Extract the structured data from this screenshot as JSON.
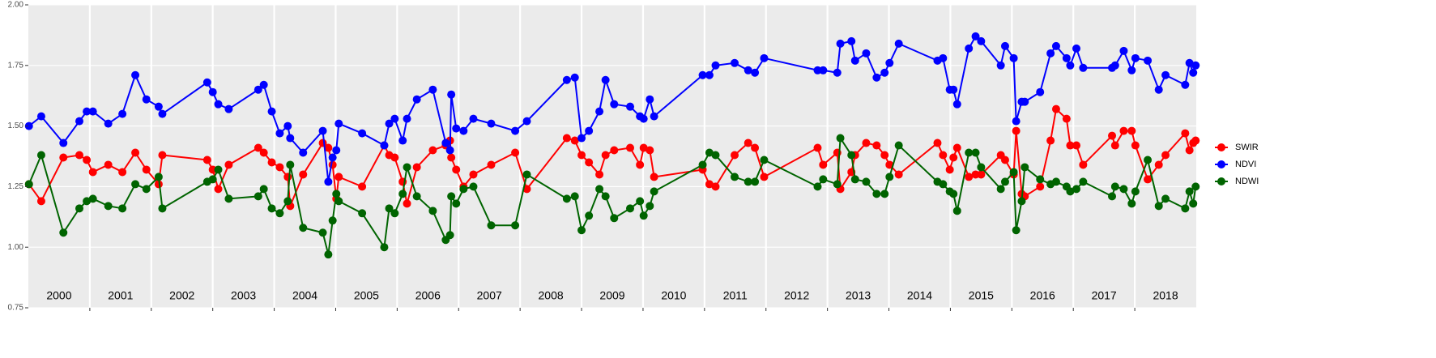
{
  "chart_data": {
    "type": "line",
    "x": [
      2000.01,
      2000.21,
      2000.57,
      2000.83,
      2000.95,
      2001.05,
      2001.3,
      2001.53,
      2001.74,
      2001.92,
      2002.12,
      2002.18,
      2002.91,
      2003.0,
      2003.09,
      2003.26,
      2003.74,
      2003.83,
      2003.96,
      2004.09,
      2004.22,
      2004.26,
      2004.47,
      2004.79,
      2004.88,
      2004.95,
      2005.01,
      2005.05,
      2005.43,
      2005.79,
      2005.87,
      2005.96,
      2006.09,
      2006.16,
      2006.32,
      2006.58,
      2006.79,
      2006.86,
      2006.88,
      2006.96,
      2007.08,
      2007.24,
      2007.53,
      2007.92,
      2008.11,
      2008.76,
      2008.89,
      2009.0,
      2009.12,
      2009.29,
      2009.39,
      2009.53,
      2009.79,
      2009.95,
      2010.01,
      2010.11,
      2010.18,
      2010.97,
      2011.08,
      2011.18,
      2011.49,
      2011.71,
      2011.82,
      2011.97,
      2012.84,
      2012.93,
      2013.16,
      2013.21,
      2013.39,
      2013.45,
      2013.63,
      2013.8,
      2013.93,
      2014.01,
      2014.16,
      2014.79,
      2014.88,
      2014.99,
      2015.05,
      2015.11,
      2015.3,
      2015.41,
      2015.5,
      2015.82,
      2015.89,
      2016.03,
      2016.07,
      2016.16,
      2016.21,
      2016.46,
      2016.63,
      2016.72,
      2016.89,
      2016.95,
      2017.05,
      2017.16,
      2017.63,
      2017.68,
      2017.82,
      2017.95,
      2018.01,
      2018.21,
      2018.39,
      2018.5,
      2018.82,
      2018.89,
      2018.95,
      2018.99
    ],
    "series": [
      {
        "name": "SWIR",
        "color": "#ff0000",
        "values": [
          1.26,
          1.19,
          1.37,
          1.38,
          1.36,
          1.31,
          1.34,
          1.31,
          1.39,
          1.32,
          1.26,
          1.38,
          1.36,
          1.32,
          1.24,
          1.34,
          1.41,
          1.39,
          1.35,
          1.33,
          1.29,
          1.17,
          1.3,
          1.43,
          1.41,
          1.34,
          1.2,
          1.29,
          1.25,
          1.42,
          1.38,
          1.37,
          1.27,
          1.18,
          1.33,
          1.4,
          1.42,
          1.44,
          1.37,
          1.32,
          1.25,
          1.3,
          1.34,
          1.39,
          1.24,
          1.45,
          1.44,
          1.38,
          1.35,
          1.3,
          1.38,
          1.4,
          1.41,
          1.34,
          1.41,
          1.4,
          1.29,
          1.32,
          1.26,
          1.25,
          1.38,
          1.43,
          1.41,
          1.29,
          1.41,
          1.34,
          1.39,
          1.24,
          1.31,
          1.38,
          1.43,
          1.42,
          1.38,
          1.34,
          1.3,
          1.43,
          1.38,
          1.32,
          1.37,
          1.41,
          1.29,
          1.3,
          1.3,
          1.38,
          1.36,
          1.3,
          1.48,
          1.22,
          1.21,
          1.25,
          1.44,
          1.57,
          1.53,
          1.42,
          1.42,
          1.34,
          1.46,
          1.42,
          1.48,
          1.48,
          1.42,
          1.28,
          1.34,
          1.38,
          1.47,
          1.4,
          1.43,
          1.44
        ]
      },
      {
        "name": "NDVI",
        "color": "#0000ff",
        "values": [
          1.5,
          1.54,
          1.43,
          1.52,
          1.56,
          1.56,
          1.51,
          1.55,
          1.71,
          1.61,
          1.58,
          1.55,
          1.68,
          1.64,
          1.59,
          1.57,
          1.65,
          1.67,
          1.56,
          1.47,
          1.5,
          1.45,
          1.39,
          1.48,
          1.27,
          1.37,
          1.4,
          1.51,
          1.47,
          1.42,
          1.51,
          1.53,
          1.44,
          1.53,
          1.61,
          1.65,
          1.43,
          1.4,
          1.63,
          1.49,
          1.48,
          1.53,
          1.51,
          1.48,
          1.52,
          1.69,
          1.7,
          1.45,
          1.48,
          1.56,
          1.69,
          1.59,
          1.58,
          1.54,
          1.53,
          1.61,
          1.54,
          1.71,
          1.71,
          1.75,
          1.76,
          1.73,
          1.72,
          1.78,
          1.73,
          1.73,
          1.72,
          1.84,
          1.85,
          1.77,
          1.8,
          1.7,
          1.72,
          1.76,
          1.84,
          1.77,
          1.78,
          1.65,
          1.65,
          1.59,
          1.82,
          1.87,
          1.85,
          1.75,
          1.83,
          1.78,
          1.52,
          1.6,
          1.6,
          1.64,
          1.8,
          1.83,
          1.78,
          1.75,
          1.82,
          1.74,
          1.74,
          1.75,
          1.81,
          1.73,
          1.78,
          1.77,
          1.65,
          1.71,
          1.67,
          1.76,
          1.72,
          1.75
        ]
      },
      {
        "name": "NDWI",
        "color": "#006400",
        "values": [
          1.26,
          1.38,
          1.06,
          1.16,
          1.19,
          1.2,
          1.17,
          1.16,
          1.26,
          1.24,
          1.29,
          1.16,
          1.27,
          1.28,
          1.32,
          1.2,
          1.21,
          1.24,
          1.16,
          1.14,
          1.19,
          1.34,
          1.08,
          1.06,
          0.97,
          1.11,
          1.22,
          1.19,
          1.14,
          1.0,
          1.16,
          1.14,
          1.22,
          1.33,
          1.21,
          1.15,
          1.03,
          1.05,
          1.21,
          1.18,
          1.24,
          1.25,
          1.09,
          1.09,
          1.3,
          1.2,
          1.21,
          1.07,
          1.13,
          1.24,
          1.21,
          1.12,
          1.16,
          1.19,
          1.13,
          1.17,
          1.23,
          1.34,
          1.39,
          1.38,
          1.29,
          1.27,
          1.27,
          1.36,
          1.25,
          1.28,
          1.26,
          1.45,
          1.38,
          1.28,
          1.27,
          1.22,
          1.22,
          1.29,
          1.42,
          1.27,
          1.26,
          1.23,
          1.22,
          1.15,
          1.39,
          1.39,
          1.33,
          1.24,
          1.27,
          1.31,
          1.07,
          1.19,
          1.33,
          1.28,
          1.26,
          1.27,
          1.25,
          1.23,
          1.24,
          1.27,
          1.21,
          1.25,
          1.24,
          1.18,
          1.23,
          1.36,
          1.17,
          1.2,
          1.16,
          1.23,
          1.18,
          1.25
        ]
      }
    ],
    "xlim": [
      2000,
      2019
    ],
    "year_boundaries": [
      2001,
      2002,
      2003,
      2004,
      2005,
      2006,
      2007,
      2008,
      2009,
      2010,
      2011,
      2012,
      2013,
      2014,
      2015,
      2016,
      2017,
      2018
    ],
    "year_labels": [
      {
        "value": 2000.5,
        "label": "2000"
      },
      {
        "value": 2001.5,
        "label": "2001"
      },
      {
        "value": 2002.5,
        "label": "2002"
      },
      {
        "value": 2003.5,
        "label": "2003"
      },
      {
        "value": 2004.5,
        "label": "2004"
      },
      {
        "value": 2005.5,
        "label": "2005"
      },
      {
        "value": 2006.5,
        "label": "2006"
      },
      {
        "value": 2007.5,
        "label": "2007"
      },
      {
        "value": 2008.5,
        "label": "2008"
      },
      {
        "value": 2009.5,
        "label": "2009"
      },
      {
        "value": 2010.5,
        "label": "2010"
      },
      {
        "value": 2011.5,
        "label": "2011"
      },
      {
        "value": 2012.5,
        "label": "2012"
      },
      {
        "value": 2013.5,
        "label": "2013"
      },
      {
        "value": 2014.5,
        "label": "2014"
      },
      {
        "value": 2015.5,
        "label": "2015"
      },
      {
        "value": 2016.5,
        "label": "2016"
      },
      {
        "value": 2017.5,
        "label": "2017"
      },
      {
        "value": 2018.5,
        "label": "2018"
      }
    ],
    "ylim": [
      0.75,
      2.0
    ],
    "yticks": [
      {
        "value": 0.75,
        "label": "0.75"
      },
      {
        "value": 1,
        "label": "1.00"
      },
      {
        "value": 1.25,
        "label": "1.25"
      },
      {
        "value": 1.5,
        "label": "1.50"
      },
      {
        "value": 1.75,
        "label": "1.75"
      },
      {
        "value": 2,
        "label": "2.00"
      }
    ],
    "grid": true,
    "legend": "right"
  }
}
